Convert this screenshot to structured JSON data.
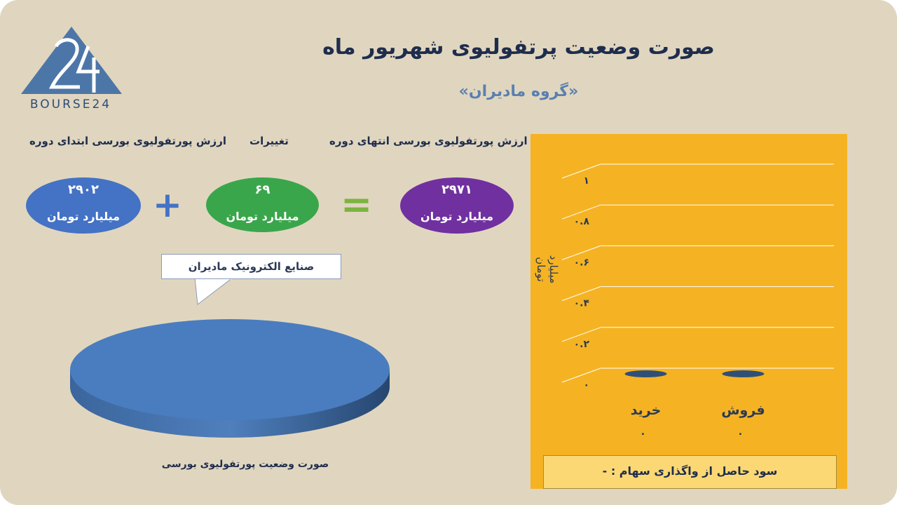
{
  "logo": {
    "text": "BOURSE24"
  },
  "title": "صورت وضعیت پرتفولیوی شهریور ماه",
  "subtitle": "«گروه مادیران»",
  "headers": {
    "end_value": "ارزش پورتفولیوی بورسی انتهای دوره",
    "changes": "تغییرات",
    "start_value": "ارزش پورتفولیوی بورسی ابتدای دوره"
  },
  "equation": {
    "end_value": {
      "number": "۲۹۷۱",
      "unit": "میلیارد تومان",
      "color": "#7030a0"
    },
    "changes": {
      "number": "۶۹",
      "unit": "میلیارد تومان",
      "color": "#3aa64b"
    },
    "start_value": {
      "number": "۲۹۰۲",
      "unit": "میلیارد تومان",
      "color": "#4472c4"
    },
    "equals_symbol": "=",
    "plus_symbol": "+"
  },
  "pie": {
    "callout": "صنایع الکترونیک مادیران",
    "label": "صورت وضعیت پورتفولیوی بورسی",
    "color": "#4a7dbf"
  },
  "chart_data": {
    "type": "bar",
    "categories": [
      "خرید",
      "فروش"
    ],
    "values": [
      0,
      0
    ],
    "value_labels": [
      "۰",
      "۰"
    ],
    "ylabel": "میلیارد تومان",
    "ylim": [
      0,
      1
    ],
    "yticks": [
      "۰",
      "۰.۲",
      "۰.۴",
      "۰.۶",
      "۰.۸",
      "۱"
    ],
    "grid": true,
    "background": "#f5b323",
    "bar_color": "#2f4f79"
  },
  "footer": {
    "text": "سود حاصل از واگذاری سهام : -"
  }
}
